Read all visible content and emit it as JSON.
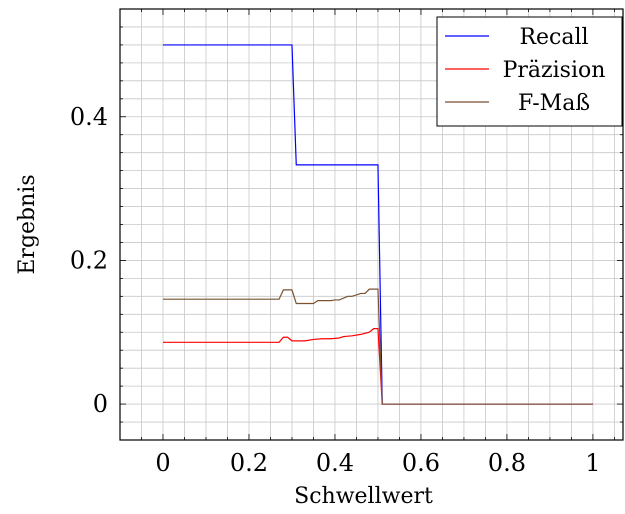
{
  "chart_data": {
    "type": "line",
    "xlabel": "Schwellwert",
    "ylabel": "Ergebnis",
    "xlim": [
      -0.1,
      1.07
    ],
    "ylim": [
      -0.05,
      0.55
    ],
    "x_ticks": [
      {
        "value": 0,
        "label": "0"
      },
      {
        "value": 0.2,
        "label": "0.2"
      },
      {
        "value": 0.4,
        "label": "0.4"
      },
      {
        "value": 0.6,
        "label": "0.6"
      },
      {
        "value": 0.8,
        "label": "0.8"
      },
      {
        "value": 1,
        "label": "1"
      }
    ],
    "y_ticks": [
      {
        "value": 0,
        "label": "0"
      },
      {
        "value": 0.2,
        "label": "0.2"
      },
      {
        "value": 0.4,
        "label": "0.4"
      }
    ],
    "grid": true,
    "legend_position": "top-right",
    "series": [
      {
        "name": "Recall",
        "color": "#0000ff",
        "x": [
          0,
          0.3,
          0.31,
          0.5,
          0.51,
          1.0
        ],
        "y": [
          0.5,
          0.5,
          0.333,
          0.333,
          0.0,
          0.0
        ]
      },
      {
        "name": "Präzision",
        "color": "#ff0000",
        "x": [
          0,
          0.27,
          0.28,
          0.29,
          0.3,
          0.31,
          0.33,
          0.35,
          0.37,
          0.39,
          0.41,
          0.42,
          0.44,
          0.46,
          0.48,
          0.49,
          0.5,
          0.51,
          1.0
        ],
        "y": [
          0.086,
          0.086,
          0.093,
          0.093,
          0.088,
          0.088,
          0.088,
          0.09,
          0.091,
          0.091,
          0.092,
          0.094,
          0.095,
          0.097,
          0.1,
          0.105,
          0.105,
          0.0,
          0.0
        ]
      },
      {
        "name": "F-Maß",
        "color": "#7a5230",
        "x": [
          0,
          0.27,
          0.28,
          0.3,
          0.31,
          0.35,
          0.36,
          0.39,
          0.4,
          0.41,
          0.43,
          0.44,
          0.46,
          0.47,
          0.48,
          0.49,
          0.5,
          0.51,
          1.0
        ],
        "y": [
          0.146,
          0.146,
          0.159,
          0.159,
          0.14,
          0.14,
          0.144,
          0.144,
          0.145,
          0.145,
          0.15,
          0.15,
          0.154,
          0.154,
          0.16,
          0.16,
          0.16,
          0.0,
          0.0
        ]
      }
    ]
  }
}
